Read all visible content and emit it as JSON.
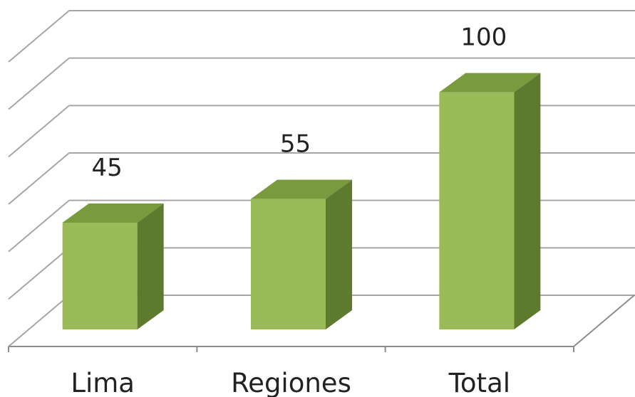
{
  "chart_data": {
    "type": "bar",
    "categories": [
      "Lima",
      "Regiones",
      "Total"
    ],
    "values": [
      45,
      55,
      100
    ],
    "data_labels": [
      "45",
      "55",
      "100"
    ],
    "title": "",
    "xlabel": "",
    "ylabel": "",
    "ylim": [
      0,
      120
    ],
    "grid": true,
    "three_d": true,
    "legend": "none",
    "colors": {
      "bar_front": "#9bbb59",
      "bar_top": "#7a9a3e",
      "bar_side": "#5e7a2f",
      "gridline": "#a6a6a6",
      "axis": "#8c8c8c"
    }
  }
}
